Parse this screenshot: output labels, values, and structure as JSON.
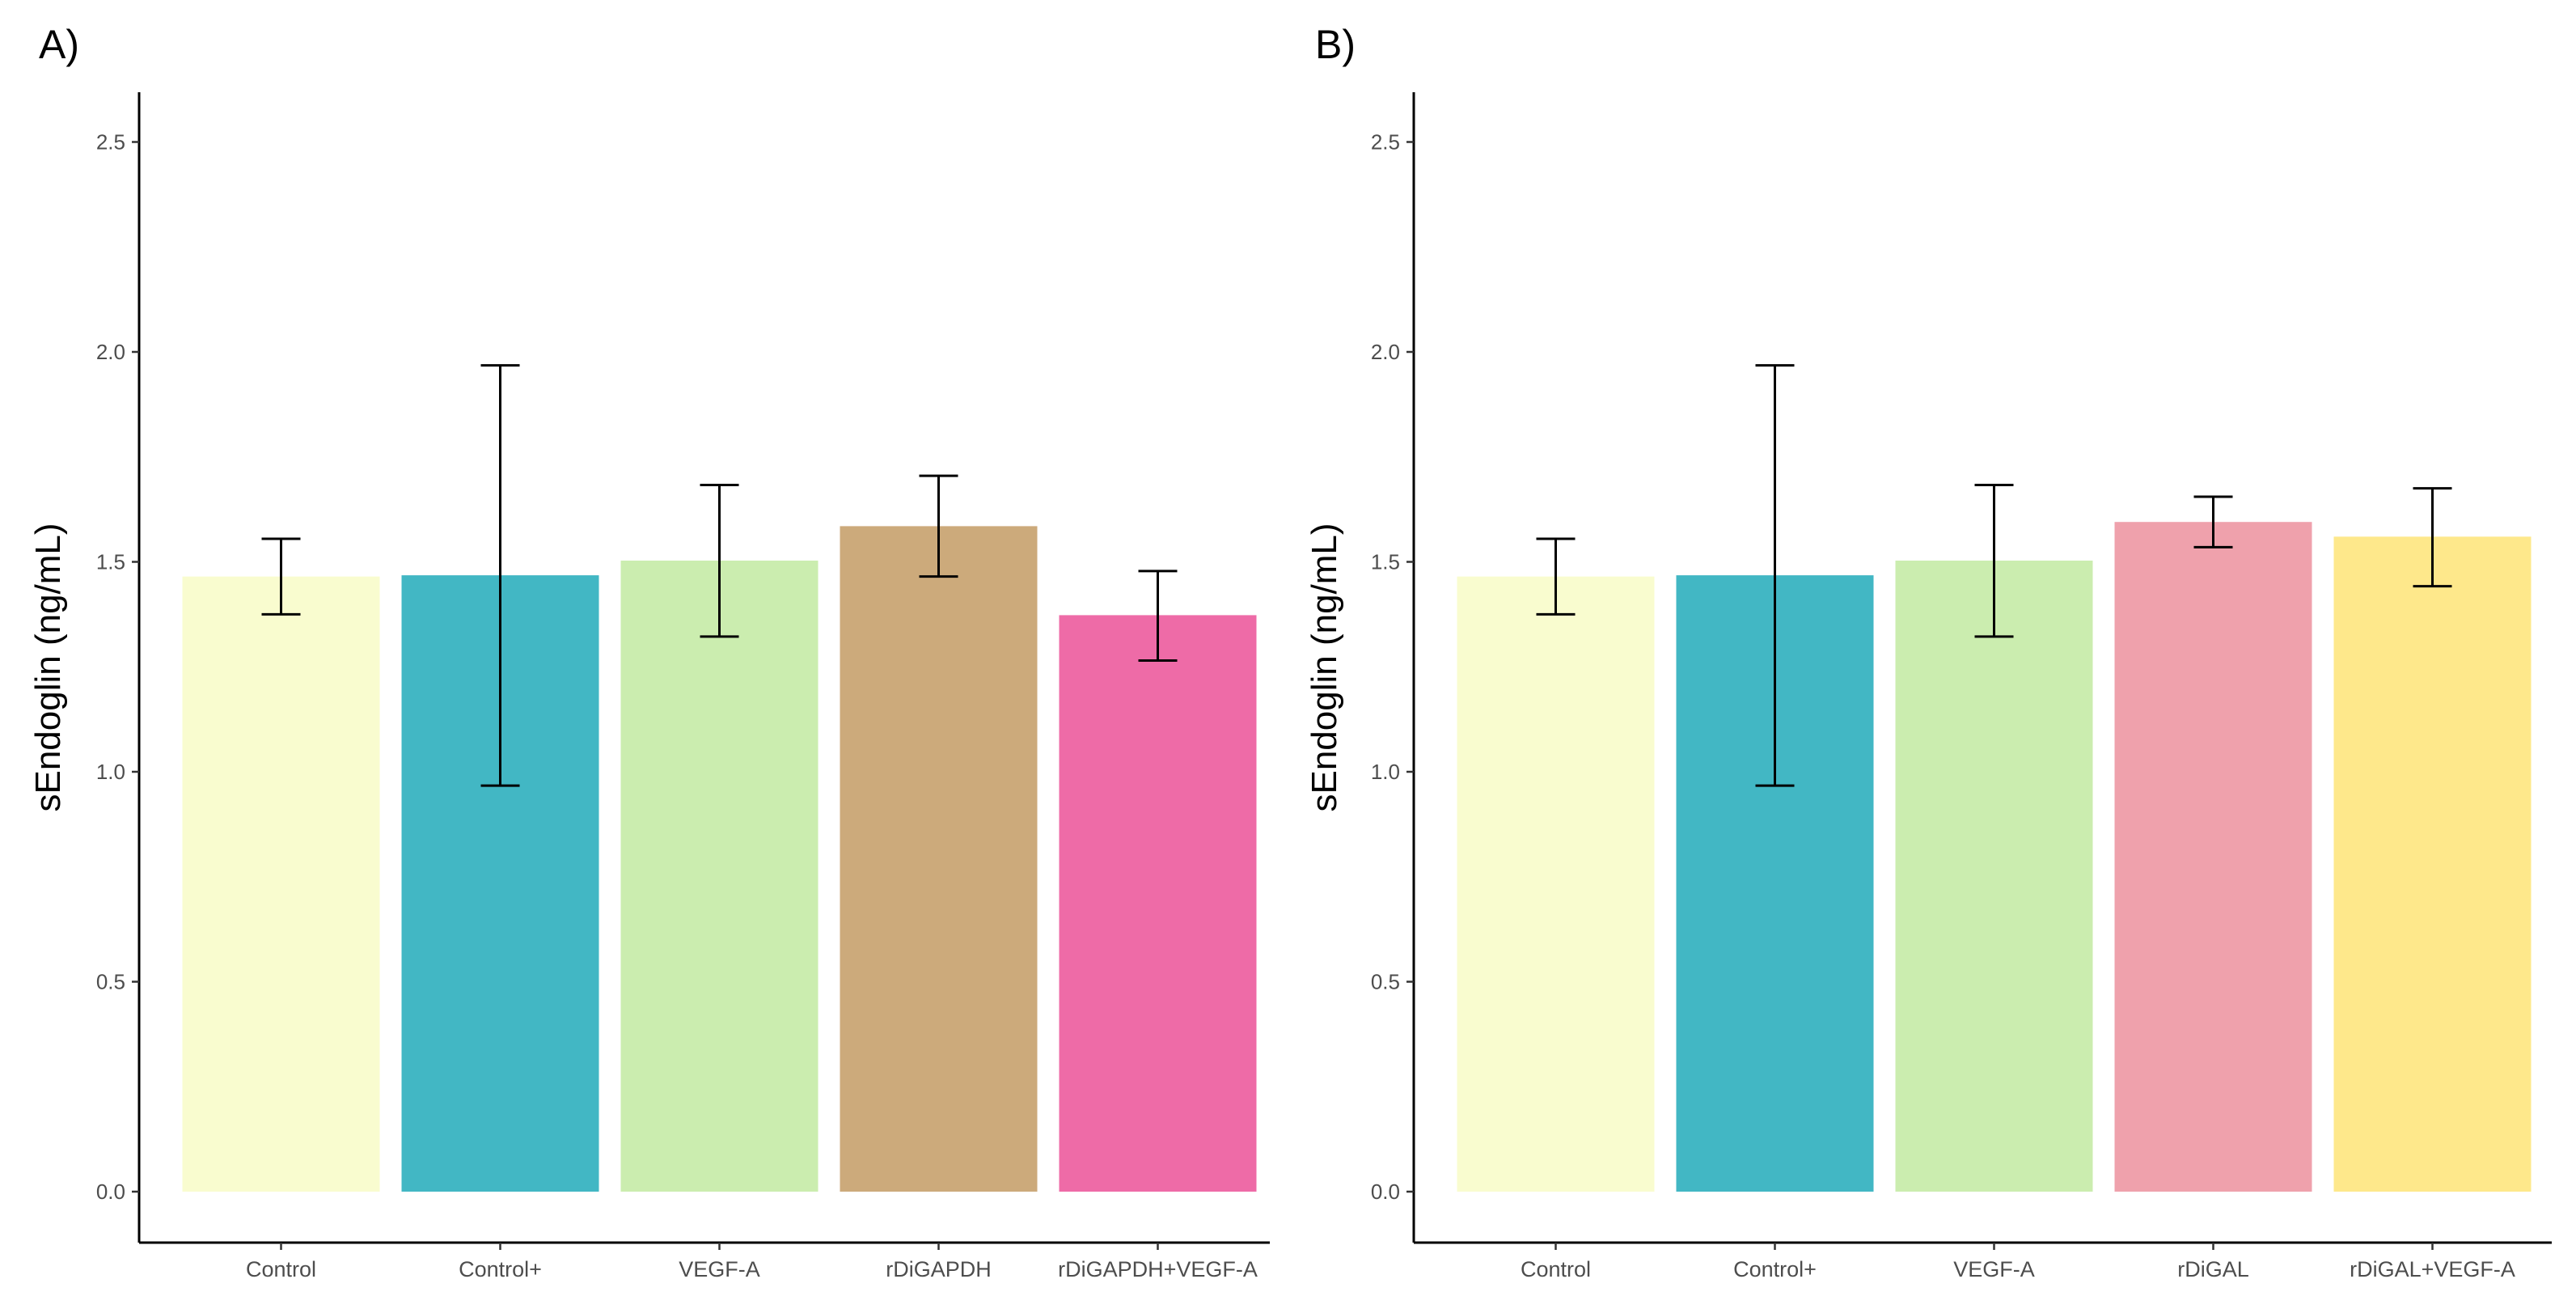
{
  "chart_data": [
    {
      "type": "bar",
      "panel_label": "A)",
      "title": "",
      "xlabel": "",
      "ylabel": "sEndoglin (ng/mL)",
      "ylim": [
        0,
        2.6
      ],
      "yticks": [
        0,
        0.5,
        1,
        1.5,
        2,
        2.5
      ],
      "ytick_labels": [
        "0.0",
        "0.5",
        "1.0",
        "1.5",
        "2.0",
        "2.5"
      ],
      "grid": false,
      "categories": [
        "Control",
        "Control+",
        "VEGF-A",
        "rDiGAPDH",
        "rDiGAPDH+VEGF-A"
      ],
      "values": [
        1.465,
        1.468,
        1.503,
        1.585,
        1.373
      ],
      "error_low": [
        1.375,
        0.967,
        1.322,
        1.465,
        1.265
      ],
      "error_high": [
        1.555,
        1.968,
        1.683,
        1.705,
        1.478
      ],
      "colors": [
        "#F9FCCF",
        "#42B7C4",
        "#CBEDAF",
        "#CCAA7B",
        "#EE6BA7"
      ]
    },
    {
      "type": "bar",
      "panel_label": "B)",
      "title": "",
      "xlabel": "",
      "ylabel": "sEndoglin (ng/mL)",
      "ylim": [
        0,
        2.6
      ],
      "yticks": [
        0,
        0.5,
        1,
        1.5,
        2,
        2.5
      ],
      "ytick_labels": [
        "0.0",
        "0.5",
        "1.0",
        "1.5",
        "2.0",
        "2.5"
      ],
      "grid": false,
      "categories": [
        "Control",
        "Control+",
        "VEGF-A",
        "rDiGAL",
        "rDiGAL+VEGF-A"
      ],
      "values": [
        1.465,
        1.468,
        1.503,
        1.595,
        1.56
      ],
      "error_low": [
        1.375,
        0.967,
        1.322,
        1.535,
        1.442
      ],
      "error_high": [
        1.555,
        1.968,
        1.683,
        1.655,
        1.675
      ],
      "colors": [
        "#F9FCCF",
        "#42B7C4",
        "#CBEDAF",
        "#EFA1AC",
        "#FEE88B"
      ]
    }
  ]
}
